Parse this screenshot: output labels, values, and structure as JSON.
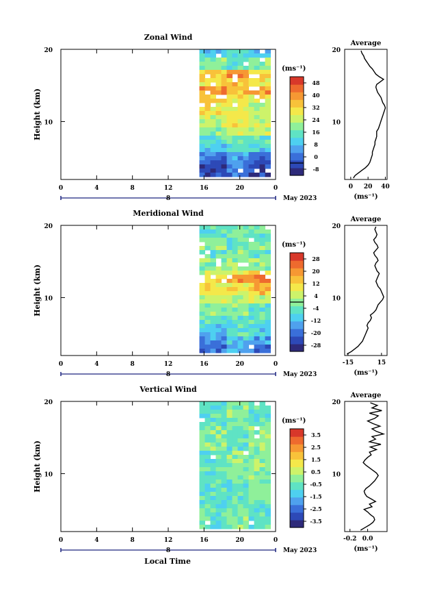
{
  "x_axis": {
    "ticks": [
      "0",
      "4",
      "8",
      "12",
      "16",
      "20",
      "0"
    ],
    "day_label": "8",
    "date_label": "May 2023",
    "xlabel": "Local Time"
  },
  "height_axis": {
    "ylabel": "Height (km)",
    "ticks": [
      "10",
      "20"
    ]
  },
  "units": "(ms⁻¹)",
  "profile_title": "Average",
  "colors": {
    "scale": [
      "#2e2a7a",
      "#2d49b7",
      "#3a6fd9",
      "#4fa1ee",
      "#4ed0f0",
      "#5fe3c4",
      "#8ff09a",
      "#cdf36a",
      "#f4e84a",
      "#f8c23a",
      "#f69833",
      "#ee6a2e",
      "#d8382a"
    ]
  },
  "panels": [
    {
      "title": "Zonal Wind",
      "colorbar_ticks": [
        "48",
        "40",
        "32",
        "24",
        "16",
        "8",
        "0",
        "-8"
      ],
      "cb_zero_at": 0.875,
      "profile_ticks": [
        "0",
        "20",
        "40"
      ],
      "profile_tick_vals": [
        0,
        20,
        40
      ],
      "profile_xlim": [
        -7,
        42
      ],
      "profile_values": [
        3,
        5,
        9,
        13,
        17,
        20,
        22,
        23,
        24,
        25,
        25,
        26,
        27,
        28,
        28,
        29,
        30,
        30,
        30,
        32,
        33,
        34,
        35,
        36,
        37,
        38,
        39,
        40,
        39,
        37,
        36,
        35,
        33,
        31,
        30,
        29,
        30,
        34,
        38,
        33,
        29,
        27,
        25,
        22,
        20,
        18,
        16,
        15,
        13,
        12
      ],
      "field": {
        "gaps": [
          0.96,
          0.9,
          0.85,
          0.8,
          0.75
        ],
        "rows": [
          {
            "lo": 0.0,
            "hi": 0.1,
            "lv": [
              1,
              2,
              1
            ]
          },
          {
            "lo": 0.1,
            "hi": 0.18,
            "lv": [
              2,
              3,
              2
            ]
          },
          {
            "lo": 0.18,
            "hi": 0.26,
            "lv": [
              4,
              5,
              4
            ]
          },
          {
            "lo": 0.26,
            "hi": 0.32,
            "lv": [
              5,
              6,
              5
            ]
          },
          {
            "lo": 0.32,
            "hi": 0.4,
            "lv": [
              6,
              7,
              7
            ]
          },
          {
            "lo": 0.4,
            "hi": 0.48,
            "lv": [
              7,
              8,
              7
            ]
          },
          {
            "lo": 0.48,
            "hi": 0.58,
            "lv": [
              8,
              8,
              7
            ]
          },
          {
            "lo": 0.58,
            "hi": 0.66,
            "lv": [
              9,
              8,
              8
            ]
          },
          {
            "lo": 0.66,
            "hi": 0.72,
            "lv": [
              10,
              9,
              10
            ]
          },
          {
            "lo": 0.72,
            "hi": 0.76,
            "lv": [
              8,
              9,
              8
            ]
          },
          {
            "lo": 0.76,
            "hi": 0.84,
            "lv": [
              9,
              10,
              9
            ]
          },
          {
            "lo": 0.84,
            "hi": 0.92,
            "lv": [
              6,
              5,
              6
            ]
          },
          {
            "lo": 0.92,
            "hi": 1.0,
            "lv": [
              4,
              5,
              4
            ]
          }
        ]
      }
    },
    {
      "title": "Meridional Wind",
      "colorbar_ticks": [
        "28",
        "20",
        "12",
        "4",
        "-4",
        "-12",
        "-20",
        "-28"
      ],
      "cb_zero_at": 0.5,
      "profile_ticks": [
        "-15",
        "15"
      ],
      "profile_tick_vals": [
        -15,
        15
      ],
      "profile_xlim": [
        -18,
        20
      ],
      "profile_values": [
        -16,
        -12,
        -9,
        -6,
        -4,
        -2,
        -1,
        0,
        1,
        2,
        3,
        2,
        3,
        5,
        6,
        5,
        8,
        10,
        11,
        12,
        14,
        16,
        17,
        16,
        15,
        14,
        12,
        11,
        10,
        11,
        12,
        13,
        11,
        10,
        9,
        10,
        12,
        11,
        9,
        8,
        10,
        12,
        11,
        9,
        8,
        10,
        11,
        10,
        9,
        10
      ],
      "field": {
        "gaps": [
          0.95,
          0.95,
          0.88,
          0.92,
          0.9
        ],
        "rows": [
          {
            "lo": 0.0,
            "hi": 0.08,
            "lv": [
              2,
              3,
              2
            ]
          },
          {
            "lo": 0.08,
            "hi": 0.14,
            "lv": [
              3,
              4,
              3
            ]
          },
          {
            "lo": 0.14,
            "hi": 0.22,
            "lv": [
              4,
              5,
              4
            ]
          },
          {
            "lo": 0.22,
            "hi": 0.3,
            "lv": [
              5,
              5,
              5
            ]
          },
          {
            "lo": 0.3,
            "hi": 0.38,
            "lv": [
              6,
              6,
              5
            ]
          },
          {
            "lo": 0.38,
            "hi": 0.46,
            "lv": [
              7,
              7,
              7
            ]
          },
          {
            "lo": 0.46,
            "hi": 0.54,
            "lv": [
              8,
              8,
              9
            ]
          },
          {
            "lo": 0.54,
            "hi": 0.6,
            "lv": [
              8,
              10,
              11
            ]
          },
          {
            "lo": 0.6,
            "hi": 0.66,
            "lv": [
              7,
              8,
              9
            ]
          },
          {
            "lo": 0.66,
            "hi": 0.74,
            "lv": [
              6,
              6,
              6
            ]
          },
          {
            "lo": 0.74,
            "hi": 0.82,
            "lv": [
              5,
              6,
              5
            ]
          },
          {
            "lo": 0.82,
            "hi": 0.9,
            "lv": [
              6,
              5,
              6
            ]
          },
          {
            "lo": 0.9,
            "hi": 1.0,
            "lv": [
              5,
              6,
              5
            ]
          }
        ]
      }
    },
    {
      "title": "Vertical Wind",
      "colorbar_ticks": [
        "3.5",
        "2.5",
        "1.5",
        "0.5",
        "-0.5",
        "-1.5",
        "-2.5",
        "-3.5"
      ],
      "cb_zero_at": -1,
      "profile_ticks": [
        "-0.2",
        "0.0"
      ],
      "profile_tick_vals": [
        -0.2,
        0.0
      ],
      "profile_xlim": [
        -0.26,
        0.22
      ],
      "profile_values": [
        -0.08,
        -0.03,
        0.02,
        0.06,
        0.08,
        0.07,
        0.03,
        0.0,
        -0.04,
        0.05,
        0.02,
        0.09,
        0.04,
        -0.01,
        -0.03,
        -0.04,
        -0.02,
        0.02,
        0.05,
        0.08,
        0.1,
        0.12,
        0.1,
        0.06,
        0.02,
        -0.02,
        -0.05,
        -0.03,
        0.0,
        0.04,
        0.02,
        0.1,
        0.03,
        0.15,
        0.02,
        0.09,
        0.05,
        0.18,
        0.1,
        0.05,
        0.14,
        0.06,
        0.0,
        0.08,
        0.12,
        0.02,
        0.16,
        0.05,
        0.11,
        0.03
      ],
      "field": {
        "gaps": [
          0.97,
          0.97,
          0.97,
          0.99,
          0.99
        ],
        "rows": [
          {
            "lo": 0.0,
            "hi": 0.2,
            "lv": [
              5,
              6,
              5
            ]
          },
          {
            "lo": 0.2,
            "hi": 0.4,
            "lv": [
              5,
              5,
              6
            ]
          },
          {
            "lo": 0.4,
            "hi": 0.6,
            "lv": [
              5,
              6,
              6
            ]
          },
          {
            "lo": 0.6,
            "hi": 0.8,
            "lv": [
              6,
              5,
              6
            ]
          },
          {
            "lo": 0.8,
            "hi": 1.0,
            "lv": [
              5,
              6,
              5
            ]
          }
        ]
      }
    }
  ]
}
